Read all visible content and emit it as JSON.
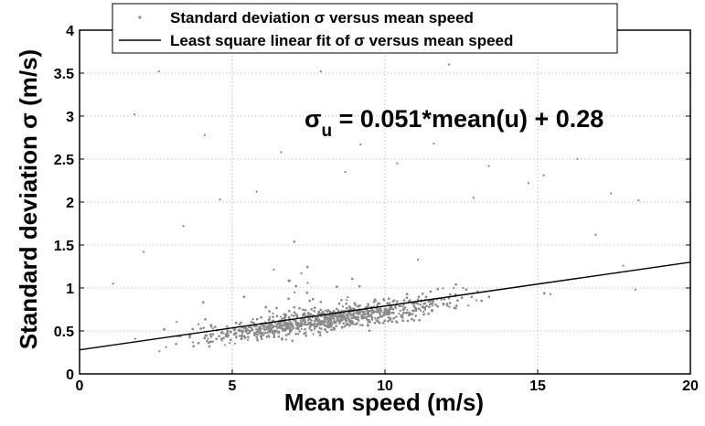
{
  "chart_data": {
    "type": "scatter",
    "title": "",
    "xlabel": "Mean speed (m/s)",
    "ylabel_main": "Standard deviation ",
    "ylabel_symbol": "σ",
    "ylabel_unit": " (m/s)",
    "xlim": [
      0,
      20
    ],
    "ylim": [
      0,
      4
    ],
    "xticks": [
      "0",
      "5",
      "10",
      "15",
      "20"
    ],
    "xtick_values": [
      0,
      5,
      10,
      15,
      20
    ],
    "yticks": [
      "0",
      "0.5",
      "1",
      "1.5",
      "2",
      "2.5",
      "3",
      "3.5",
      "4"
    ],
    "ytick_values": [
      0,
      0.5,
      1,
      1.5,
      2,
      2.5,
      3,
      3.5,
      4
    ],
    "grid": true,
    "legend_position": "top",
    "series": [
      {
        "name": "Standard deviation σ versus mean speed",
        "kind": "scatter",
        "color": "#8c8c8c",
        "point_count": 14000,
        "distribution": {
          "x_range": [
            0.2,
            18.5
          ],
          "y_trend_slope": 0.051,
          "y_trend_intercept": 0.22,
          "y_spread_sd": 0.09
        },
        "outliers": [
          {
            "x": 2.6,
            "y": 3.52
          },
          {
            "x": 4.1,
            "y": 2.78
          },
          {
            "x": 1.8,
            "y": 3.02
          },
          {
            "x": 7.9,
            "y": 3.52
          },
          {
            "x": 12.1,
            "y": 3.6
          },
          {
            "x": 16.3,
            "y": 2.5
          },
          {
            "x": 17.4,
            "y": 2.1
          },
          {
            "x": 18.3,
            "y": 2.02
          },
          {
            "x": 16.9,
            "y": 1.62
          },
          {
            "x": 9.2,
            "y": 2.67
          },
          {
            "x": 11.6,
            "y": 2.68
          },
          {
            "x": 6.6,
            "y": 2.58
          },
          {
            "x": 13.4,
            "y": 2.42
          },
          {
            "x": 4.6,
            "y": 2.03
          },
          {
            "x": 5.8,
            "y": 2.12
          },
          {
            "x": 3.4,
            "y": 1.72
          },
          {
            "x": 2.1,
            "y": 1.42
          },
          {
            "x": 1.1,
            "y": 1.05
          },
          {
            "x": 14.7,
            "y": 2.22
          },
          {
            "x": 15.2,
            "y": 2.31
          },
          {
            "x": 10.4,
            "y": 2.45
          },
          {
            "x": 8.7,
            "y": 2.35
          },
          {
            "x": 12.9,
            "y": 2.05
          },
          {
            "x": 17.8,
            "y": 1.26
          },
          {
            "x": 18.2,
            "y": 0.98
          }
        ]
      },
      {
        "name": "Least square linear fit of  σ versus mean speed",
        "kind": "line",
        "color": "#000000",
        "slope": 0.051,
        "intercept": 0.28,
        "x_range": [
          0,
          20
        ]
      }
    ],
    "annotation": {
      "symbol": "σ",
      "subscript": "u",
      "text": " = 0.051*mean(u) + 0.28",
      "x": 7.4,
      "y": 2.95
    }
  }
}
